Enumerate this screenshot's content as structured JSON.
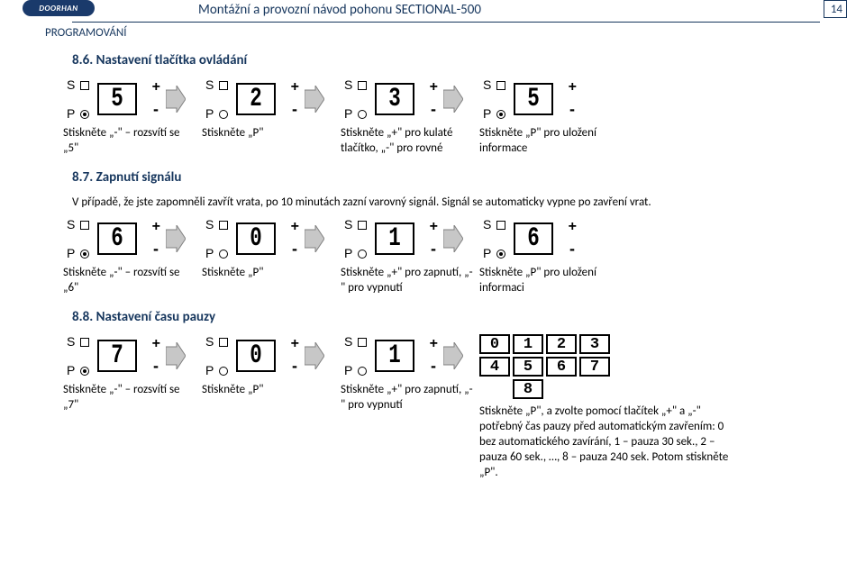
{
  "header": {
    "logo": "DOORHAN",
    "title": "Montážní a provozní návod pohonu SECTIONAL-500",
    "page_number": "14",
    "section_number": "8",
    "section_title": "PROGRAMOVÁNÍ"
  },
  "sec_86": {
    "heading": "8.6. Nastavení tlačítka ovládání",
    "steps": [
      {
        "digit_s": "5",
        "p_filled": true,
        "label": "Stiskněte „-\" – rozsvítí se „5\""
      },
      {
        "digit_s": "2",
        "p_filled": false,
        "label": "Stiskněte „P\""
      },
      {
        "digit_s": "3",
        "p_filled": false,
        "label": "Stiskněte „+\" pro kulaté tlačítko, „-\" pro rovné"
      },
      {
        "digit_s": "5",
        "p_filled": true,
        "label": "Stiskněte „P\" pro uložení informace"
      }
    ]
  },
  "sec_87": {
    "heading": "8.7. Zapnutí signálu",
    "para": "V případě, že jste zapomněli zavřít vrata, po 10 minutách zazní varovný signál. Signál se automaticky vypne po zavření vrat.",
    "steps": [
      {
        "digit_s": "6",
        "p_filled": true,
        "label": "Stiskněte „-\" – rozsvítí se „6\""
      },
      {
        "digit_s": "0",
        "p_filled": false,
        "label": "Stiskněte „P\""
      },
      {
        "digit_s": "1",
        "p_filled": false,
        "label": "Stiskněte „+\" pro zapnutí, „-\" pro vypnutí"
      },
      {
        "digit_s": "6",
        "p_filled": true,
        "label": "Stiskněte „P\" pro uložení informaci"
      }
    ]
  },
  "sec_88": {
    "heading": "8.8. Nastavení času pauzy",
    "steps": [
      {
        "digit_s": "7",
        "p_filled": true,
        "label": "Stiskněte „-\" – rozsvítí se „7\""
      },
      {
        "digit_s": "0",
        "p_filled": false,
        "label": "Stiskněte „P\""
      },
      {
        "digit_s": "1",
        "p_filled": false,
        "label": "Stiskněte „+\" pro zapnutí, „-\" pro vypnutí"
      }
    ],
    "keypad": [
      [
        "0",
        "1",
        "2",
        "3"
      ],
      [
        "4",
        "5",
        "6",
        "7"
      ],
      [
        "",
        "8",
        "",
        ""
      ]
    ],
    "last_label": "Stiskněte „P\", a zvolte pomocí tlačítek „+\" a „-\" potřebný čas pauzy před automatickým zavřením: 0 bez automatického zavírání, 1 – pauza 30 sek., 2 – pauza 60 sek., …, 8 – pauza 240 sek. Potom stiskněte „P\"."
  },
  "colors": {
    "brand": "#16365d",
    "logo_bg": "#1a3a6b",
    "text": "#000000",
    "bg": "#ffffff"
  }
}
